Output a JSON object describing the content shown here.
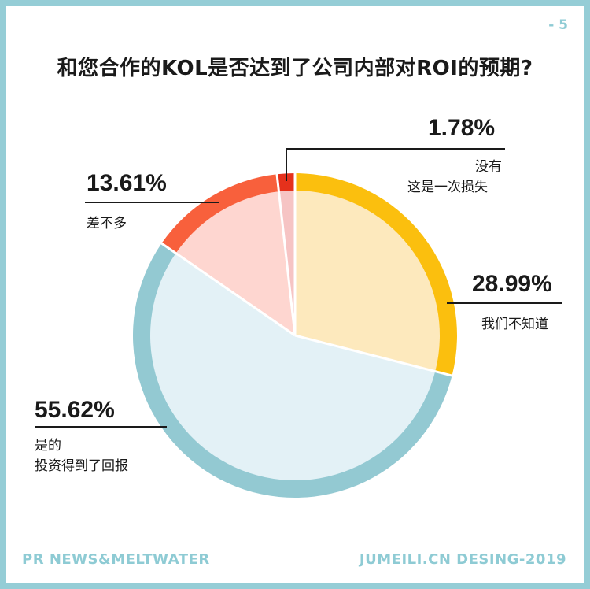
{
  "page_number": "- 5",
  "colors": {
    "frame": "#95cdd6",
    "accent_text": "#8ecbd4"
  },
  "chart_data": {
    "type": "pie",
    "title": "和您合作的KOL是否达到了公司内部对ROI的预期?",
    "slices": [
      {
        "value": 28.99,
        "label": "28.99%",
        "desc": [
          "我们不知道"
        ],
        "ring_color": "#fbbf0e",
        "fill_color": "#fde9bd"
      },
      {
        "value": 55.62,
        "label": "55.62%",
        "desc": [
          "是的",
          "投资得到了回报"
        ],
        "ring_color": "#93c9d2",
        "fill_color": "#e3f1f6"
      },
      {
        "value": 13.61,
        "label": "13.61%",
        "desc": [
          "差不多"
        ],
        "ring_color": "#f8603c",
        "fill_color": "#fed6d0"
      },
      {
        "value": 1.78,
        "label": "1.78%",
        "desc": [
          "没有",
          "这是一次损失"
        ],
        "ring_color": "#e5311c",
        "fill_color": "#f6c4c4"
      }
    ]
  },
  "footer": {
    "left": "PR NEWS&MELTWATER",
    "right": "JUMEILI.CN DESING-2019"
  }
}
